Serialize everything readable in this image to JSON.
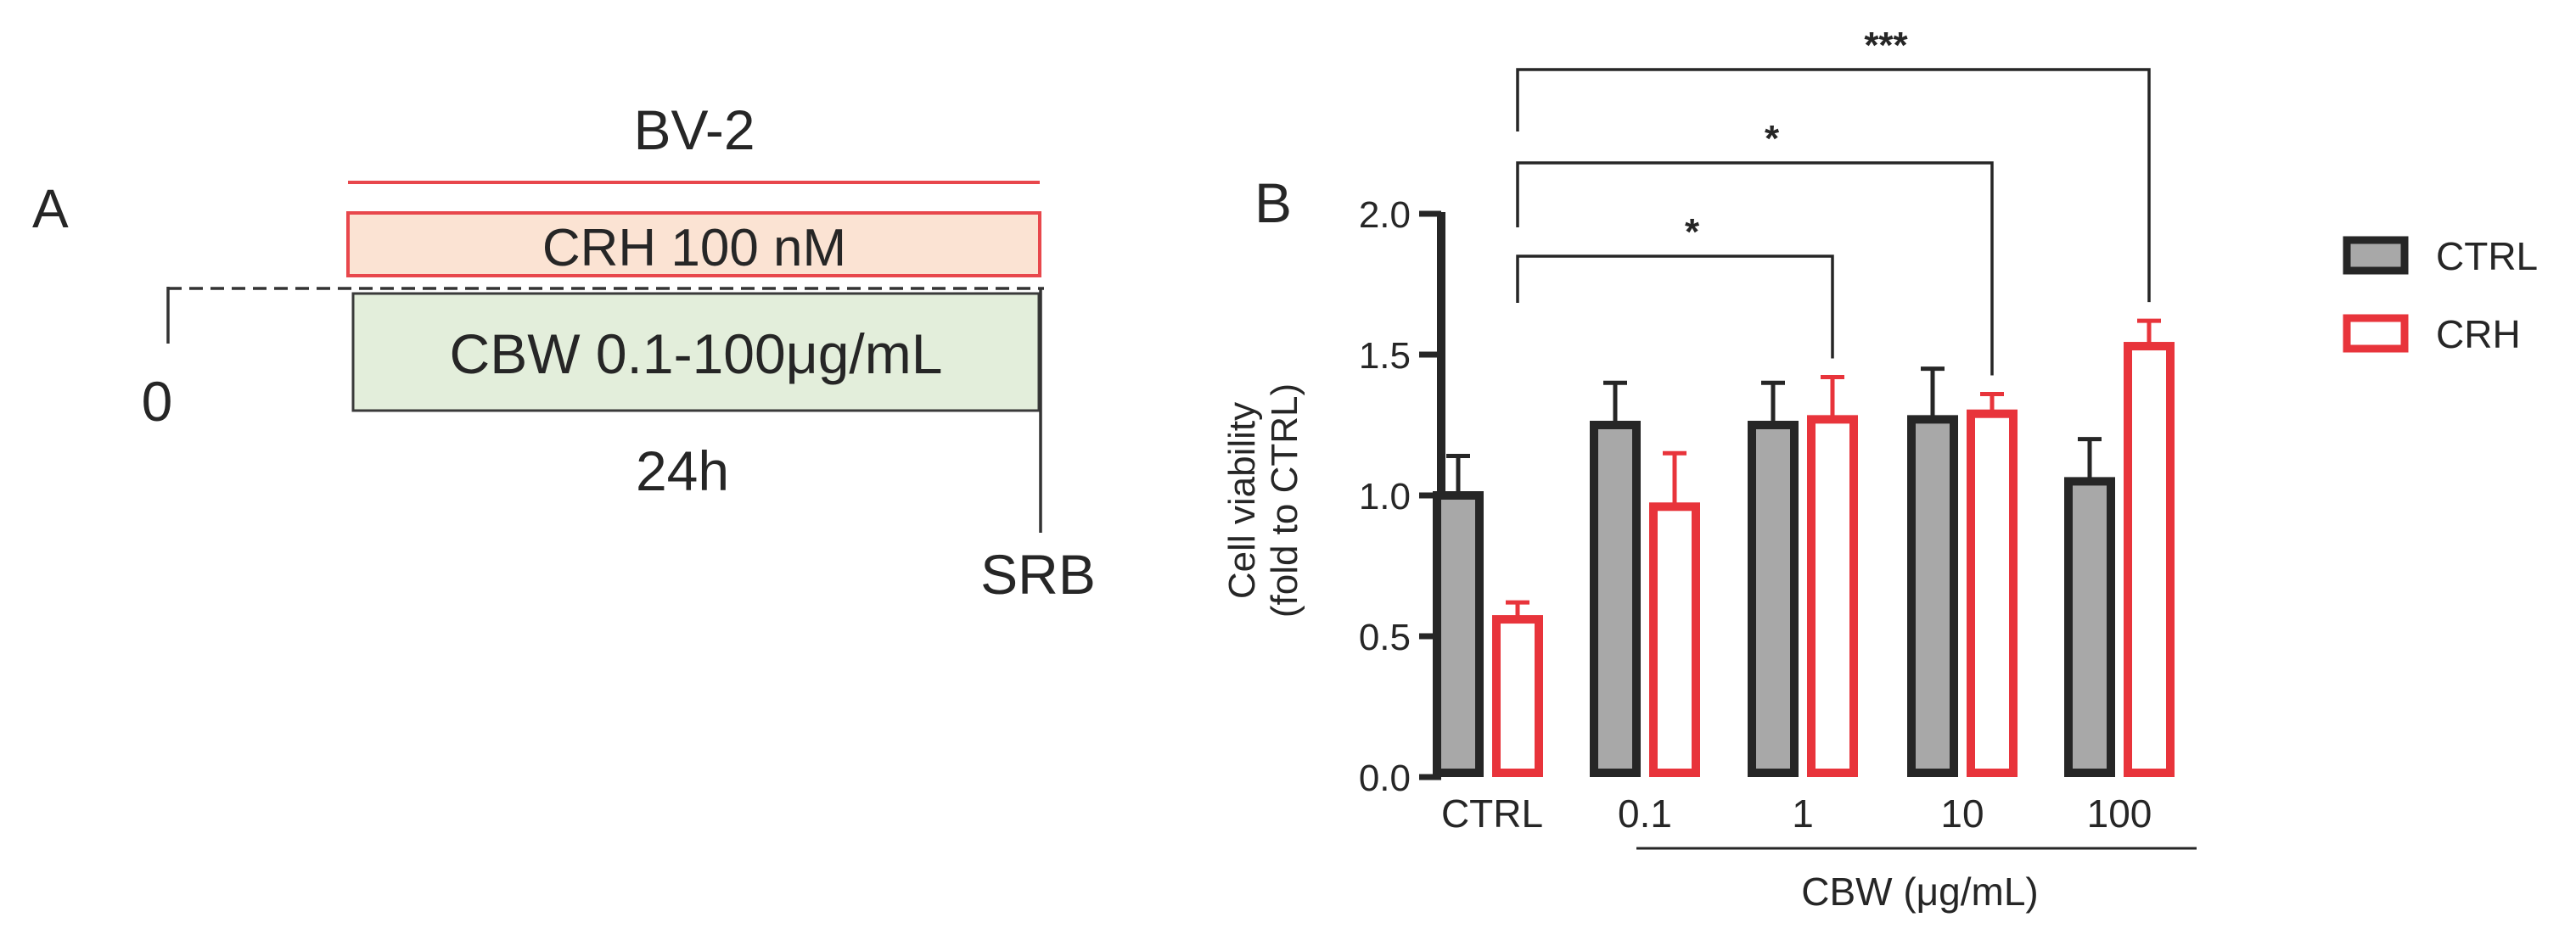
{
  "panel_a": {
    "label": "A",
    "cell_line": "BV-2",
    "crh_box": "CRH 100 nM",
    "cbw_box": "CBW 0.1-100μg/mL",
    "start_label": "0",
    "duration_label": "24h",
    "end_label": "SRB",
    "colors": {
      "crh_line": "#e8474c",
      "crh_fill": "#fbe3d3",
      "cbw_fill": "#e3eedb",
      "cbw_border": "#3a3a3a"
    }
  },
  "panel_b": {
    "label": "B",
    "group_axis_label": "CBW (μg/mL)"
  },
  "chart_data": {
    "type": "bar",
    "categories": [
      "CTRL",
      "0.1",
      "1",
      "10",
      "100"
    ],
    "series": [
      {
        "name": "CTRL",
        "values": [
          1.0,
          1.25,
          1.25,
          1.27,
          1.05
        ],
        "errors": [
          0.14,
          0.15,
          0.15,
          0.18,
          0.15
        ],
        "fill": "#a8a8a8",
        "stroke": "#262626"
      },
      {
        "name": "CRH",
        "values": [
          0.56,
          0.96,
          1.27,
          1.29,
          1.53
        ],
        "errors": [
          0.06,
          0.19,
          0.15,
          0.07,
          0.09
        ],
        "fill": "#ffffff",
        "stroke": "#e8343b"
      }
    ],
    "ylabel": "Cell viability",
    "ylabel2": "(fold to CTRL)",
    "ylim": [
      0,
      2.0
    ],
    "yticks": [
      "0.0",
      "0.5",
      "1.0",
      "1.5",
      "2.0"
    ],
    "ytick_values": [
      0,
      0.5,
      1.0,
      1.5,
      2.0
    ],
    "legend_position": "right",
    "significance": [
      {
        "from": "CRH @ CTRL",
        "to": "CRH @ 1",
        "label": "*"
      },
      {
        "from": "CRH @ CTRL",
        "to": "CRH @ 10",
        "label": "*"
      },
      {
        "from": "CRH @ CTRL",
        "to": "CRH @ 100",
        "label": "***"
      }
    ]
  }
}
